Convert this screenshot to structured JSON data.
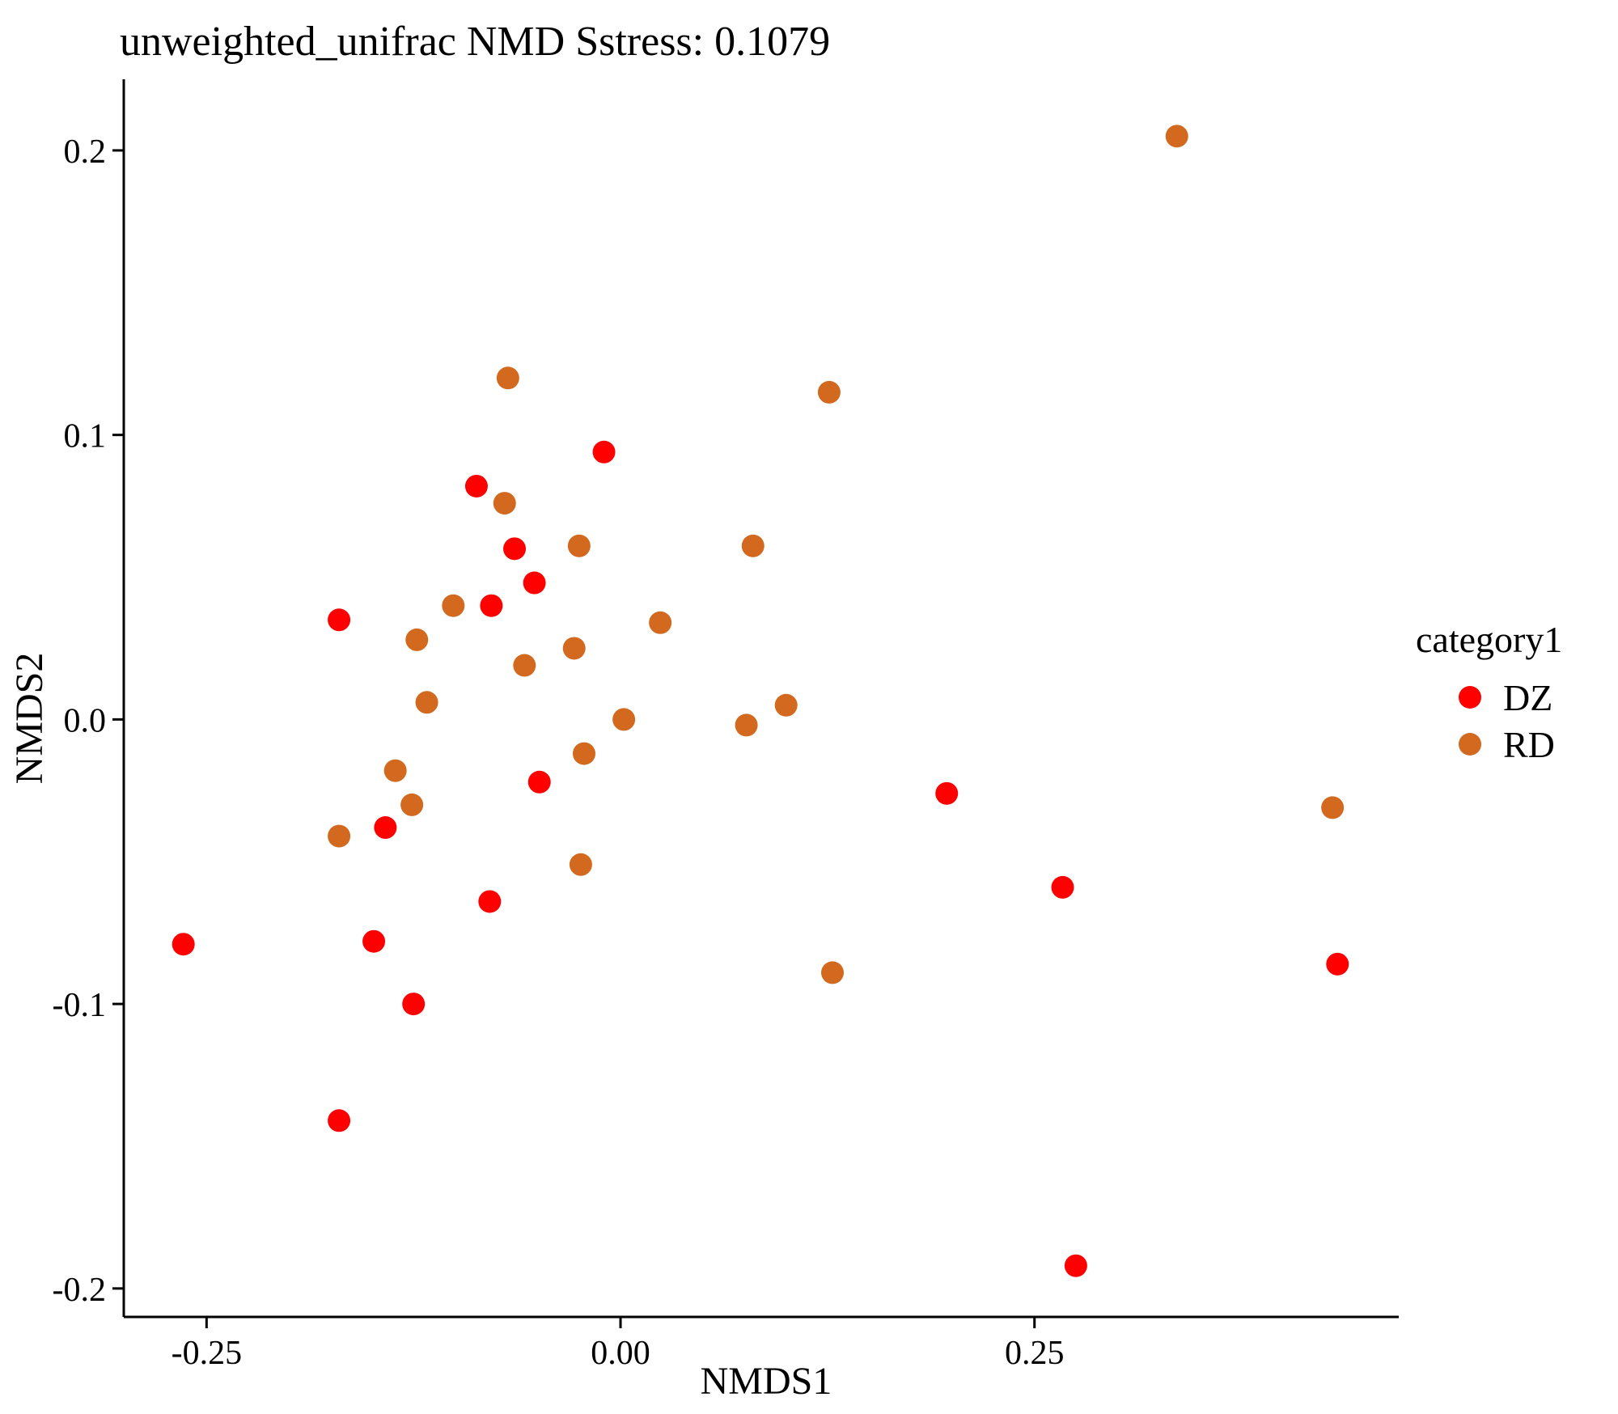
{
  "chart_data": {
    "type": "scatter",
    "title": "unweighted_unifrac NMD Sstress: 0.1079",
    "xlabel": "NMDS1",
    "ylabel": "NMDS2",
    "xlim": [
      -0.3,
      0.47
    ],
    "ylim": [
      -0.21,
      0.225
    ],
    "xticks": [
      {
        "value": -0.25,
        "label": "-0.25"
      },
      {
        "value": 0.0,
        "label": "0.00"
      },
      {
        "value": 0.25,
        "label": "0.25"
      }
    ],
    "yticks": [
      {
        "value": 0.2,
        "label": "0.2"
      },
      {
        "value": 0.1,
        "label": "0.1"
      },
      {
        "value": 0.0,
        "label": "0.0"
      },
      {
        "value": -0.1,
        "label": "-0.1"
      },
      {
        "value": -0.2,
        "label": "-0.2"
      }
    ],
    "grid": false,
    "legend": {
      "title": "category1",
      "position": "right"
    },
    "series": [
      {
        "name": "DZ",
        "color": "#ff0000",
        "points": [
          {
            "x": -0.264,
            "y": -0.079
          },
          {
            "x": -0.17,
            "y": 0.035
          },
          {
            "x": -0.17,
            "y": -0.141
          },
          {
            "x": -0.142,
            "y": -0.038
          },
          {
            "x": -0.149,
            "y": -0.078
          },
          {
            "x": -0.125,
            "y": -0.1
          },
          {
            "x": -0.087,
            "y": 0.082
          },
          {
            "x": -0.078,
            "y": 0.04
          },
          {
            "x": -0.079,
            "y": -0.064
          },
          {
            "x": -0.064,
            "y": 0.06
          },
          {
            "x": -0.052,
            "y": 0.048
          },
          {
            "x": -0.049,
            "y": -0.022
          },
          {
            "x": -0.01,
            "y": 0.094
          },
          {
            "x": 0.197,
            "y": -0.026
          },
          {
            "x": 0.267,
            "y": -0.059
          },
          {
            "x": 0.275,
            "y": -0.192
          },
          {
            "x": 0.433,
            "y": -0.086
          }
        ]
      },
      {
        "name": "RD",
        "color": "#d2691e",
        "points": [
          {
            "x": -0.068,
            "y": 0.12
          },
          {
            "x": -0.07,
            "y": 0.076
          },
          {
            "x": -0.101,
            "y": 0.04
          },
          {
            "x": -0.123,
            "y": 0.028
          },
          {
            "x": -0.117,
            "y": 0.006
          },
          {
            "x": -0.136,
            "y": -0.018
          },
          {
            "x": -0.126,
            "y": -0.03
          },
          {
            "x": -0.17,
            "y": -0.041
          },
          {
            "x": -0.058,
            "y": 0.019
          },
          {
            "x": -0.025,
            "y": 0.061
          },
          {
            "x": -0.028,
            "y": 0.025
          },
          {
            "x": -0.022,
            "y": -0.012
          },
          {
            "x": -0.024,
            "y": -0.051
          },
          {
            "x": 0.002,
            "y": 0.0
          },
          {
            "x": 0.024,
            "y": 0.034
          },
          {
            "x": 0.08,
            "y": 0.061
          },
          {
            "x": 0.076,
            "y": -0.002
          },
          {
            "x": 0.1,
            "y": 0.005
          },
          {
            "x": 0.126,
            "y": 0.115
          },
          {
            "x": 0.128,
            "y": -0.089
          },
          {
            "x": 0.336,
            "y": 0.205
          },
          {
            "x": 0.43,
            "y": -0.031
          }
        ]
      }
    ]
  }
}
